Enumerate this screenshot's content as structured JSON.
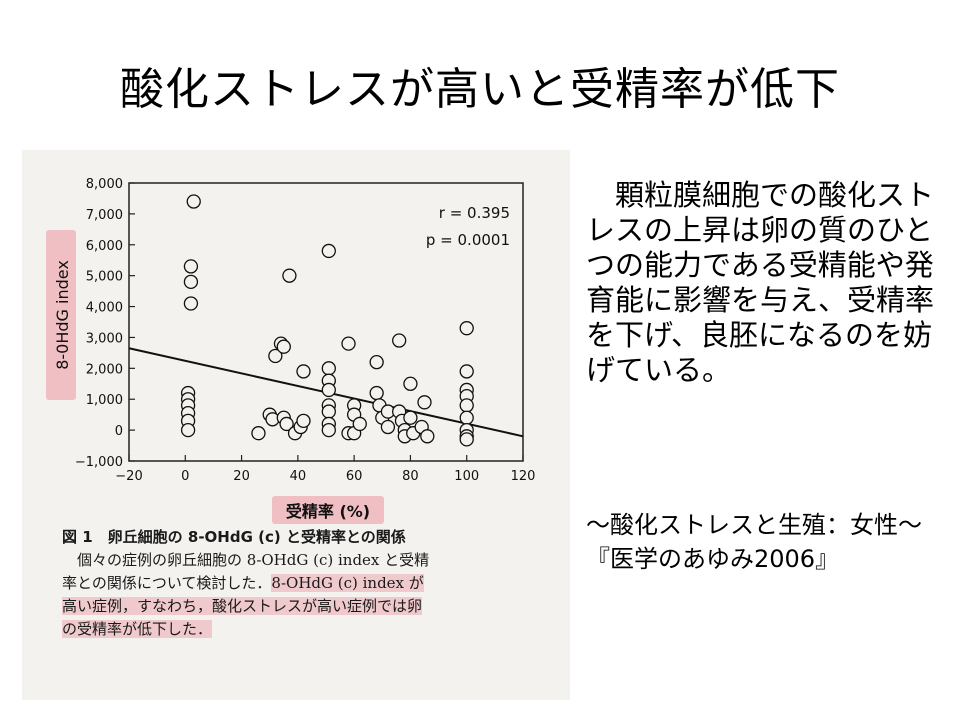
{
  "slide": {
    "title": "酸化ストレスが高いと受精率が低下",
    "description": "　顆粒膜細胞での酸化ストレスの上昇は卵の質のひとつの能力である受精能や発育能に影響を与え、受精率を下げ、良胚になるのを妨げている。",
    "source_line1": "〜酸化ストレスと生殖：女性〜",
    "source_line2": "『医学のあゆみ2006』"
  },
  "figure_caption": {
    "heading": "図 1　卵丘細胞の 8-OHdG (c) と受精率との関係",
    "line1": "　個々の症例の卵丘細胞の 8-OHdG (c) index と受精",
    "line2a": "率との関係について検討した．",
    "line2b": "8-OHdG (c) index が",
    "line3": "高い症例，すなわち，酸化ストレスが高い症例では卵",
    "line4": "の受精率が低下した．"
  },
  "chart_data": {
    "type": "scatter",
    "xlabel": "受精率 (%)",
    "ylabel": "8-0HdG index",
    "xlim": [
      -20,
      120
    ],
    "ylim": [
      -1000,
      8000
    ],
    "x_ticks": [
      "−20",
      "0",
      "20",
      "40",
      "60",
      "80",
      "100",
      "120"
    ],
    "y_ticks": [
      "−1,000",
      "0",
      "1,000",
      "2,000",
      "3,000",
      "4,000",
      "5,000",
      "6,000",
      "7,000",
      "8,000"
    ],
    "annotations": [
      "r = 0.395",
      "p = 0.0001"
    ],
    "regression_line": {
      "x": [
        -20,
        120
      ],
      "y": [
        2650,
        -200
      ]
    },
    "points": [
      {
        "x": 3,
        "y": 7400
      },
      {
        "x": 2,
        "y": 5300
      },
      {
        "x": 2,
        "y": 4800
      },
      {
        "x": 2,
        "y": 4100
      },
      {
        "x": 1,
        "y": 1200
      },
      {
        "x": 1,
        "y": 1000
      },
      {
        "x": 1,
        "y": 800
      },
      {
        "x": 1,
        "y": 550
      },
      {
        "x": 1,
        "y": 300
      },
      {
        "x": 1,
        "y": 0
      },
      {
        "x": 26,
        "y": -100
      },
      {
        "x": 30,
        "y": 500
      },
      {
        "x": 31,
        "y": 350
      },
      {
        "x": 32,
        "y": 2400
      },
      {
        "x": 34,
        "y": 2800
      },
      {
        "x": 35,
        "y": 2700
      },
      {
        "x": 35,
        "y": 400
      },
      {
        "x": 36,
        "y": 200
      },
      {
        "x": 37,
        "y": 5000
      },
      {
        "x": 39,
        "y": -100
      },
      {
        "x": 41,
        "y": 100
      },
      {
        "x": 42,
        "y": 300
      },
      {
        "x": 42,
        "y": 1900
      },
      {
        "x": 51,
        "y": 5800
      },
      {
        "x": 51,
        "y": 2000
      },
      {
        "x": 51,
        "y": 1600
      },
      {
        "x": 51,
        "y": 1300
      },
      {
        "x": 51,
        "y": 800
      },
      {
        "x": 51,
        "y": 600
      },
      {
        "x": 51,
        "y": 200
      },
      {
        "x": 51,
        "y": 0
      },
      {
        "x": 58,
        "y": 2800
      },
      {
        "x": 58,
        "y": -100
      },
      {
        "x": 60,
        "y": 800
      },
      {
        "x": 60,
        "y": 500
      },
      {
        "x": 60,
        "y": -100
      },
      {
        "x": 62,
        "y": 200
      },
      {
        "x": 68,
        "y": 1200
      },
      {
        "x": 68,
        "y": 2200
      },
      {
        "x": 69,
        "y": 800
      },
      {
        "x": 70,
        "y": 400
      },
      {
        "x": 72,
        "y": 600
      },
      {
        "x": 72,
        "y": 100
      },
      {
        "x": 76,
        "y": 2900
      },
      {
        "x": 76,
        "y": 600
      },
      {
        "x": 77,
        "y": 300
      },
      {
        "x": 78,
        "y": 0
      },
      {
        "x": 78,
        "y": -200
      },
      {
        "x": 80,
        "y": 1500
      },
      {
        "x": 80,
        "y": 400
      },
      {
        "x": 81,
        "y": -100
      },
      {
        "x": 84,
        "y": 100
      },
      {
        "x": 85,
        "y": 900
      },
      {
        "x": 86,
        "y": -200
      },
      {
        "x": 100,
        "y": 3300
      },
      {
        "x": 100,
        "y": 1900
      },
      {
        "x": 100,
        "y": 1300
      },
      {
        "x": 100,
        "y": 1100
      },
      {
        "x": 100,
        "y": 800
      },
      {
        "x": 100,
        "y": 400
      },
      {
        "x": 100,
        "y": 0
      },
      {
        "x": 100,
        "y": -200
      },
      {
        "x": 100,
        "y": -300
      }
    ]
  }
}
